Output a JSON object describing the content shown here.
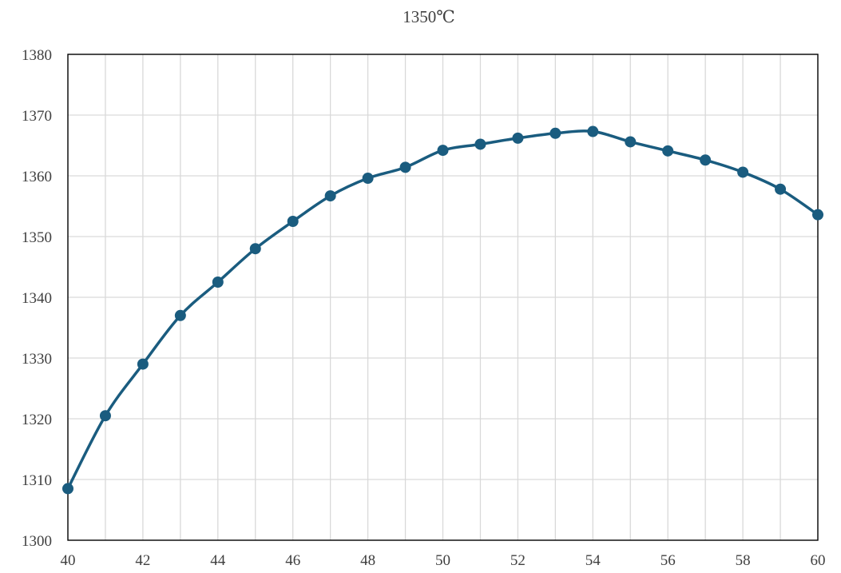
{
  "chart_data": {
    "type": "line",
    "title": "1350℃",
    "xlabel": "",
    "ylabel": "",
    "xlim": [
      40,
      60
    ],
    "ylim": [
      1300,
      1380
    ],
    "x_ticks": [
      40,
      42,
      44,
      46,
      48,
      50,
      52,
      54,
      56,
      58,
      60
    ],
    "y_ticks": [
      1300,
      1310,
      1320,
      1330,
      1340,
      1350,
      1360,
      1370,
      1380
    ],
    "grid": true,
    "smooth": true,
    "series": [
      {
        "color": "#1a5c7f",
        "x": [
          40,
          41,
          42,
          43,
          44,
          45,
          46,
          47,
          48,
          49,
          50,
          51,
          52,
          53,
          54,
          55,
          56,
          57,
          58,
          59,
          60
        ],
        "y": [
          1308.5,
          1320.5,
          1329.0,
          1337.0,
          1342.5,
          1348.0,
          1352.5,
          1356.7,
          1359.6,
          1361.4,
          1364.2,
          1365.2,
          1366.2,
          1367.0,
          1367.3,
          1365.6,
          1364.1,
          1362.6,
          1360.6,
          1357.8,
          1353.6
        ]
      }
    ]
  }
}
